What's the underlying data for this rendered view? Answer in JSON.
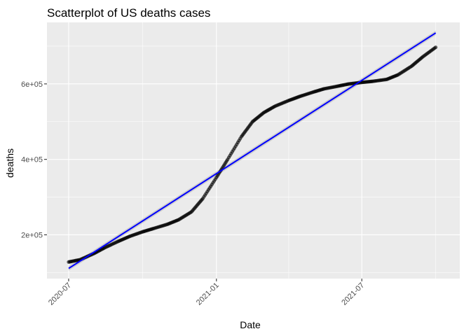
{
  "chart_data": {
    "type": "scatter",
    "title": "Scatterplot of  US deaths cases",
    "xlabel": "Date",
    "ylabel": "deaths",
    "x_axis_type": "date",
    "x_tick_labels": [
      "2020-07",
      "2021-01",
      "2021-07"
    ],
    "x_ticks": [
      "2020-07-01",
      "2021-01-01",
      "2021-07-01"
    ],
    "x_minor_ticks": [
      "2020-10-01",
      "2021-04-01",
      "2021-10-01"
    ],
    "xlim": [
      "2020-06-04",
      "2021-10-31"
    ],
    "y_tick_labels": [
      "2e+05",
      "4e+05",
      "6e+05"
    ],
    "y_ticks": [
      200000,
      400000,
      600000
    ],
    "y_minor_ticks": [
      100000,
      300000,
      500000,
      700000
    ],
    "ylim": [
      84000,
      763000
    ],
    "grid": true,
    "legend": "none",
    "colors": {
      "panel_background": "#ebebeb",
      "grid": "#ffffff",
      "points": "#000000",
      "trend_line": "#0000ff",
      "confidence_band": "#b3b3b3"
    },
    "series": [
      {
        "kind": "points",
        "x": [
          "2020-07-01",
          "2020-07-15",
          "2020-08-01",
          "2020-08-15",
          "2020-09-01",
          "2020-09-15",
          "2020-10-01",
          "2020-10-15",
          "2020-11-01",
          "2020-11-15",
          "2020-12-01",
          "2020-12-15",
          "2021-01-01",
          "2021-01-15",
          "2021-02-01",
          "2021-02-15",
          "2021-03-01",
          "2021-03-15",
          "2021-04-01",
          "2021-04-15",
          "2021-05-01",
          "2021-05-15",
          "2021-06-01",
          "2021-06-15",
          "2021-07-01",
          "2021-07-15",
          "2021-08-01",
          "2021-08-15",
          "2021-09-01",
          "2021-09-15",
          "2021-10-01"
        ],
        "y": [
          128000,
          134000,
          150000,
          166000,
          183000,
          196000,
          208000,
          217000,
          228000,
          240000,
          261000,
          296000,
          352000,
          400000,
          460000,
          500000,
          524000,
          541000,
          556000,
          567000,
          578000,
          587000,
          594000,
          600000,
          604000,
          607000,
          612000,
          624000,
          647000,
          672000,
          697000
        ]
      },
      {
        "kind": "linear-fit",
        "x": [
          "2020-07-01",
          "2021-10-01"
        ],
        "y": [
          111000,
          735000
        ]
      }
    ]
  }
}
